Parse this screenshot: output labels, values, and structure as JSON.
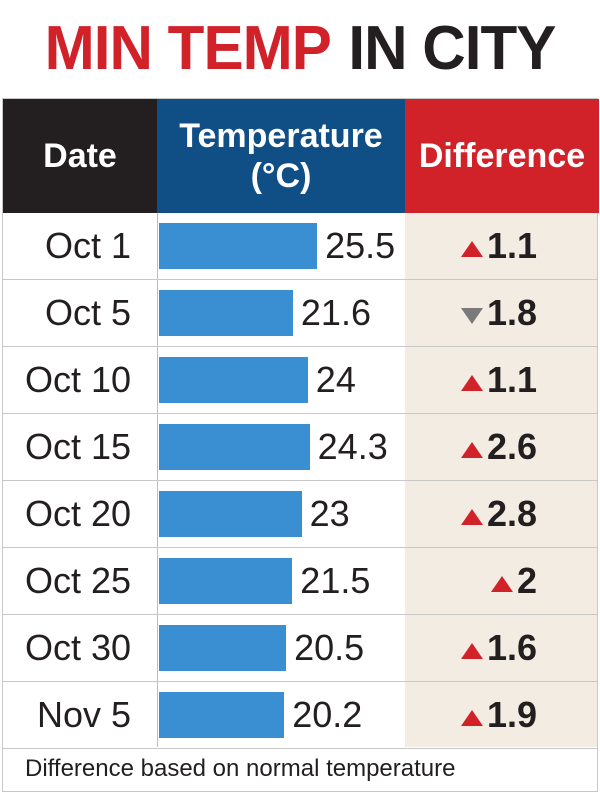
{
  "title": {
    "part1": "MIN TEMP",
    "part2": "IN CITY"
  },
  "headers": {
    "date": "Date",
    "temp_line1": "Temperature",
    "temp_line2": "(°C)",
    "difference": "Difference"
  },
  "footnote": "Difference based on normal temperature",
  "colors": {
    "red": "#d1222a",
    "navy": "#0f4f86",
    "dark": "#231f20",
    "bar": "#3a8fd2",
    "diff_bg": "#f3ece2",
    "down_arrow": "#7a7a7a"
  },
  "chart_data": {
    "type": "bar",
    "categories": [
      "Oct 1",
      "Oct 5",
      "Oct 10",
      "Oct 15",
      "Oct 20",
      "Oct 25",
      "Oct 30",
      "Nov 5"
    ],
    "values": [
      25.5,
      21.6,
      24,
      24.3,
      23,
      21.5,
      20.5,
      20.2
    ],
    "value_labels": [
      "25.5",
      "21.6",
      "24",
      "24.3",
      "23",
      "21.5",
      "20.5",
      "20.2"
    ],
    "difference": [
      {
        "direction": "up",
        "value": "1.1"
      },
      {
        "direction": "down",
        "value": "1.8"
      },
      {
        "direction": "up",
        "value": "1.1"
      },
      {
        "direction": "up",
        "value": "2.6"
      },
      {
        "direction": "up",
        "value": "2.8"
      },
      {
        "direction": "up",
        "value": "2"
      },
      {
        "direction": "up",
        "value": "1.6"
      },
      {
        "direction": "up",
        "value": "1.9"
      }
    ]
  }
}
